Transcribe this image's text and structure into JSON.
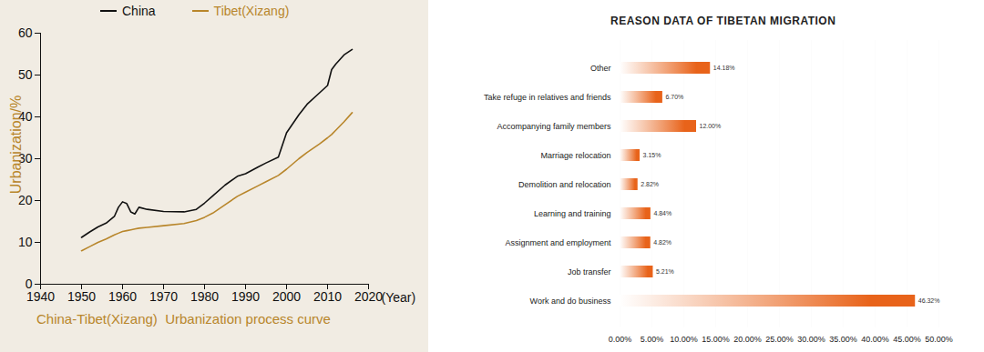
{
  "chart_data": [
    {
      "type": "line",
      "title": "China-Tibet(Xizang)  Urbanization process curve",
      "y_label": "Urbanization/%",
      "x_label": "(Year)",
      "x": [
        1950,
        1952,
        1954,
        1956,
        1958,
        1959,
        1960,
        1961,
        1962,
        1963,
        1964,
        1966,
        1970,
        1975,
        1978,
        1980,
        1982,
        1985,
        1988,
        1990,
        1993,
        1995,
        1998,
        2000,
        2003,
        2005,
        2008,
        2010,
        2011,
        2012,
        2014,
        2016
      ],
      "series": [
        {
          "name": "China",
          "color": "#111111",
          "values": [
            11.2,
            12.5,
            13.7,
            14.6,
            16.2,
            18.4,
            19.7,
            19.3,
            17.3,
            16.8,
            18.4,
            17.9,
            17.4,
            17.3,
            17.9,
            19.4,
            21.1,
            23.7,
            25.8,
            26.4,
            28.0,
            29.0,
            30.4,
            36.2,
            40.5,
            43.0,
            45.7,
            47.5,
            51.3,
            52.6,
            54.8,
            56.1
          ]
        },
        {
          "name": "Tibet(Xizang)",
          "color": "#b8862b",
          "values": [
            8.0,
            9.0,
            10.0,
            10.8,
            11.8,
            12.2,
            12.6,
            12.8,
            13.0,
            13.2,
            13.4,
            13.6,
            14.0,
            14.5,
            15.2,
            16.0,
            17.0,
            19.0,
            21.0,
            22.0,
            23.5,
            24.5,
            26.0,
            27.5,
            30.0,
            31.5,
            33.5,
            35.0,
            35.8,
            36.8,
            38.8,
            41.0
          ]
        }
      ],
      "xlim": [
        1940,
        2020
      ],
      "xticks": [
        1940,
        1950,
        1960,
        1970,
        1980,
        1990,
        2000,
        2010,
        2020
      ],
      "ylim": [
        0,
        60
      ],
      "yticks": [
        0,
        10,
        20,
        30,
        40,
        50,
        60
      ],
      "grid": false,
      "legend": "top"
    },
    {
      "type": "bar",
      "title": "REASON DATA OF TIBETAN MIGRATION",
      "orientation": "horizontal",
      "categories": [
        "Other",
        "Take refuge in relatives and friends",
        "Accompanying family members",
        "Marriage relocation",
        "Demolition and relocation",
        "Learning and training",
        "Assignment and employment",
        "Job transfer",
        "Work and do business"
      ],
      "values": [
        14.18,
        6.7,
        12.0,
        3.15,
        2.82,
        4.84,
        4.82,
        5.21,
        46.32
      ],
      "value_labels": [
        "14.18%",
        "6.70%",
        "12.00%",
        "3.15%",
        "2.82%",
        "4.84%",
        "4.82%",
        "5.21%",
        "46.32%"
      ],
      "color": "#e8631a",
      "xlim": [
        0,
        50
      ],
      "xticks": [
        {
          "value": 0,
          "label": "0.00%"
        },
        {
          "value": 5,
          "label": "5.00%"
        },
        {
          "value": 10,
          "label": "10.00%"
        },
        {
          "value": 15,
          "label": "15.00%"
        },
        {
          "value": 20,
          "label": "20.00%"
        },
        {
          "value": 25,
          "label": "25.00%"
        },
        {
          "value": 30,
          "label": "30.00%"
        },
        {
          "value": 35,
          "label": "35.00%"
        },
        {
          "value": 40,
          "label": "40.00%"
        },
        {
          "value": 45,
          "label": "45.00%"
        },
        {
          "value": 50,
          "label": "50.00%"
        }
      ],
      "grid": true,
      "data_labels": true
    }
  ]
}
